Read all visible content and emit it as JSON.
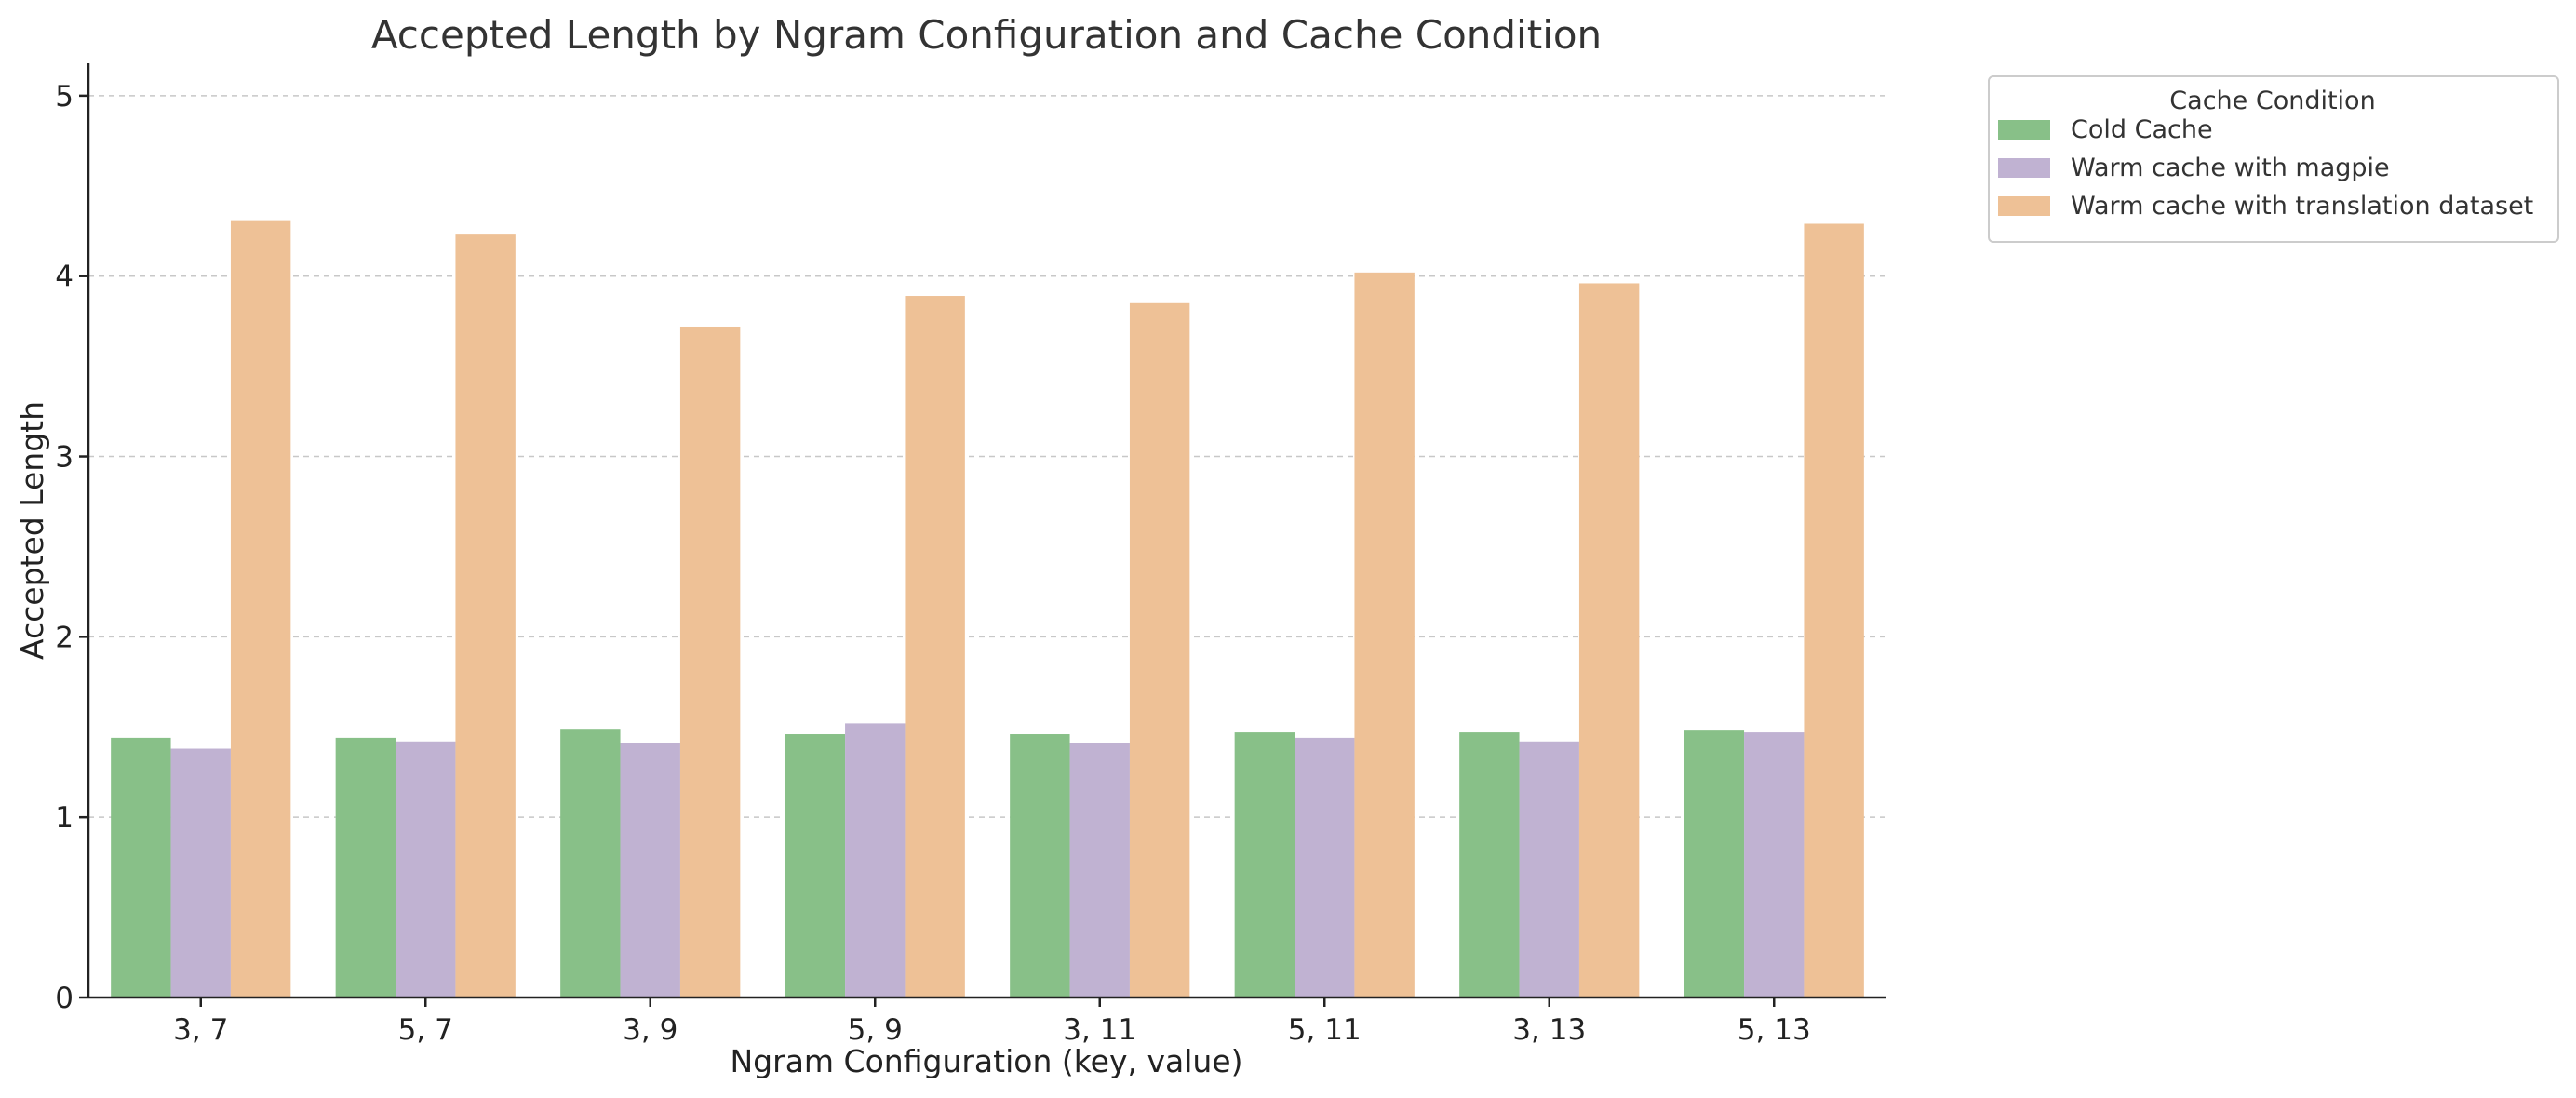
{
  "chart_data": {
    "type": "bar",
    "title": "Accepted Length by Ngram Configuration and Cache Condition",
    "xlabel": "Ngram Configuration (key, value)",
    "ylabel": "Accepted Length",
    "ylim": [
      0,
      5.18
    ],
    "yticks": [
      0,
      1,
      2,
      3,
      4,
      5
    ],
    "grid": "y",
    "categories": [
      "3, 7",
      "5, 7",
      "3, 9",
      "5, 9",
      "3, 11",
      "5, 11",
      "3, 13",
      "5, 13"
    ],
    "legend": {
      "title": "Cache Condition",
      "placement": "outside-top-right"
    },
    "series": [
      {
        "name": "Cold Cache",
        "color": "#88c088",
        "values": [
          1.44,
          1.44,
          1.49,
          1.46,
          1.46,
          1.47,
          1.47,
          1.48
        ]
      },
      {
        "name": "Warm cache with magpie",
        "color": "#c0b2d2",
        "values": [
          1.38,
          1.42,
          1.41,
          1.52,
          1.41,
          1.44,
          1.42,
          1.47
        ]
      },
      {
        "name": "Warm cache with translation dataset",
        "color": "#eec196",
        "values": [
          4.31,
          4.23,
          3.72,
          3.89,
          3.85,
          4.02,
          3.96,
          4.29
        ]
      }
    ]
  }
}
